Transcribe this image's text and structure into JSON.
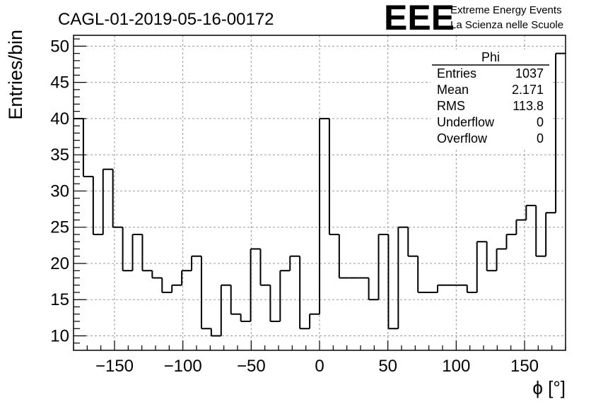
{
  "chart_data": {
    "type": "histogram",
    "title": "CAGL-01-2019-05-16-00172",
    "xlabel": "ϕ [°]",
    "ylabel": "Entries/bin",
    "xlim": [
      -180,
      180
    ],
    "ylim": [
      8,
      51.5
    ],
    "bin_width": 7.2,
    "x_ticks": [
      -150,
      -100,
      -50,
      0,
      50,
      100,
      150
    ],
    "x_tick_labels": [
      "−150",
      "−100",
      "−50",
      "0",
      "50",
      "100",
      "150"
    ],
    "y_ticks": [
      10,
      15,
      20,
      25,
      30,
      35,
      40,
      45,
      50
    ],
    "y_tick_labels": [
      "10",
      "15",
      "20",
      "25",
      "30",
      "35",
      "40",
      "45",
      "50"
    ],
    "grid": true,
    "series": [
      {
        "values": [
          40,
          32,
          24,
          33,
          25,
          19,
          24,
          19,
          18,
          16,
          17,
          19,
          21,
          11,
          10,
          17,
          13,
          12,
          22,
          17,
          12,
          19,
          21,
          11,
          13,
          40,
          24,
          18,
          18,
          18,
          15,
          24,
          11,
          25,
          21,
          16,
          16,
          17,
          17,
          17,
          16,
          23,
          19,
          22,
          24,
          26,
          28,
          21,
          27,
          49
        ]
      }
    ],
    "stats_box": {
      "title": "Phi",
      "rows": [
        {
          "label": "Entries",
          "value": "1037"
        },
        {
          "label": "Mean",
          "value": "2.171"
        },
        {
          "label": "RMS",
          "value": "113.8"
        },
        {
          "label": "Underflow",
          "value": "0"
        },
        {
          "label": "Overflow",
          "value": "0"
        }
      ]
    }
  },
  "logo": {
    "text": "EEE",
    "line1": "Extreme Energy Events",
    "line2": "La Scienza nelle Scuole",
    "color": "#1f1fe6"
  }
}
